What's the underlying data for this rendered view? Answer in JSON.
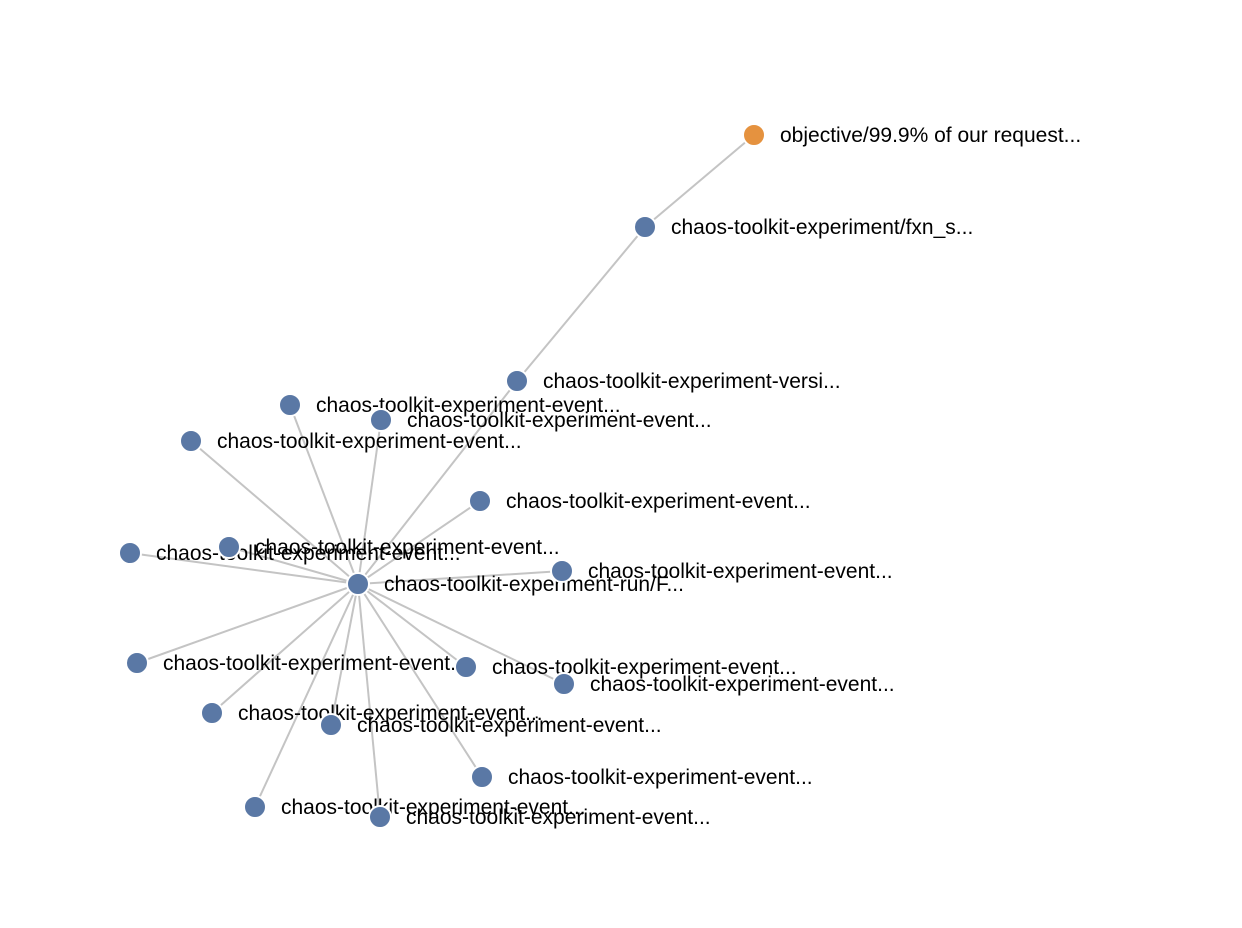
{
  "colors": {
    "node_default": "#5a78a5",
    "node_objective": "#e5923f",
    "edge": "#c4c4c4",
    "label": "#000000"
  },
  "nodes": [
    {
      "id": "objective",
      "label": "objective/99.9% of our request...",
      "kind": "objective"
    },
    {
      "id": "experiment",
      "label": "chaos-toolkit-experiment/fxn_s...",
      "kind": "default"
    },
    {
      "id": "version",
      "label": "chaos-toolkit-experiment-versi...",
      "kind": "default"
    },
    {
      "id": "run",
      "label": "chaos-toolkit-experiment-run/F...",
      "kind": "default"
    },
    {
      "id": "event-01",
      "label": "chaos-toolkit-experiment-event...",
      "kind": "default"
    },
    {
      "id": "event-02",
      "label": "chaos-toolkit-experiment-event...",
      "kind": "default"
    },
    {
      "id": "event-03",
      "label": "chaos-toolkit-experiment-event...",
      "kind": "default"
    },
    {
      "id": "event-04",
      "label": "chaos-toolkit-experiment-event...",
      "kind": "default"
    },
    {
      "id": "event-05",
      "label": "chaos-toolkit-experiment-event...",
      "kind": "default"
    },
    {
      "id": "event-06",
      "label": "chaos-toolkit-experiment-event...",
      "kind": "default"
    },
    {
      "id": "event-07",
      "label": "chaos-toolkit-experiment-event...",
      "kind": "default"
    },
    {
      "id": "event-08",
      "label": "chaos-toolkit-experiment-event...",
      "kind": "default"
    },
    {
      "id": "event-09",
      "label": "chaos-toolkit-experiment-event...",
      "kind": "default"
    },
    {
      "id": "event-10",
      "label": "chaos-toolkit-experiment-event...",
      "kind": "default"
    },
    {
      "id": "event-11",
      "label": "chaos-toolkit-experiment-event...",
      "kind": "default"
    },
    {
      "id": "event-12",
      "label": "chaos-toolkit-experiment-event...",
      "kind": "default"
    },
    {
      "id": "event-13",
      "label": "chaos-toolkit-experiment-event...",
      "kind": "default"
    },
    {
      "id": "event-14",
      "label": "chaos-toolkit-experiment-event...",
      "kind": "default"
    },
    {
      "id": "event-15",
      "label": "chaos-toolkit-experiment-event...",
      "kind": "default"
    }
  ],
  "edges": [
    {
      "source": "objective",
      "target": "experiment"
    },
    {
      "source": "experiment",
      "target": "version"
    },
    {
      "source": "version",
      "target": "run"
    },
    {
      "source": "run",
      "target": "event-01"
    },
    {
      "source": "run",
      "target": "event-02"
    },
    {
      "source": "run",
      "target": "event-03"
    },
    {
      "source": "run",
      "target": "event-04"
    },
    {
      "source": "run",
      "target": "event-05"
    },
    {
      "source": "run",
      "target": "event-06"
    },
    {
      "source": "run",
      "target": "event-07"
    },
    {
      "source": "run",
      "target": "event-08"
    },
    {
      "source": "run",
      "target": "event-09"
    },
    {
      "source": "run",
      "target": "event-10"
    },
    {
      "source": "run",
      "target": "event-11"
    },
    {
      "source": "run",
      "target": "event-12"
    },
    {
      "source": "run",
      "target": "event-13"
    },
    {
      "source": "run",
      "target": "event-14"
    },
    {
      "source": "run",
      "target": "event-15"
    }
  ]
}
